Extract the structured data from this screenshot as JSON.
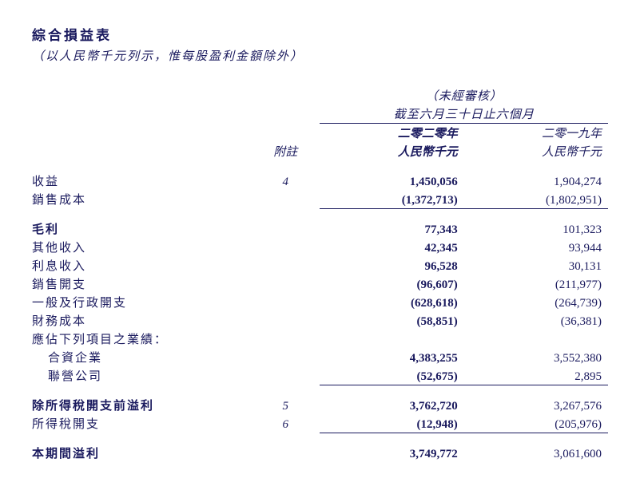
{
  "title": "綜合損益表",
  "subtitle": "（以人民幣千元列示，惟每股盈利金額除外）",
  "header": {
    "unaudited": "（未經審核）",
    "period": "截至六月三十日止六個月",
    "year_current": "二零二零年",
    "year_prior": "二零一九年",
    "note": "附註",
    "currency": "人民幣千元"
  },
  "rows": {
    "revenue": {
      "label": "收益",
      "note": "4",
      "cur": "1,450,056",
      "prior": "1,904,274"
    },
    "cogs": {
      "label": "銷售成本",
      "cur": "(1,372,713)",
      "prior": "(1,802,951)"
    },
    "gross": {
      "label": "毛利",
      "cur": "77,343",
      "prior": "101,323"
    },
    "other_income": {
      "label": "其他收入",
      "cur": "42,345",
      "prior": "93,944"
    },
    "interest_income": {
      "label": "利息收入",
      "cur": "96,528",
      "prior": "30,131"
    },
    "selling": {
      "label": "銷售開支",
      "cur": "(96,607)",
      "prior": "(211,977)"
    },
    "admin": {
      "label": "一般及行政開支",
      "cur": "(628,618)",
      "prior": "(264,739)"
    },
    "finance": {
      "label": "財務成本",
      "cur": "(58,851)",
      "prior": "(36,381)"
    },
    "share_heading": {
      "label": "應佔下列項目之業績："
    },
    "jv": {
      "label": "合資企業",
      "cur": "4,383,255",
      "prior": "3,552,380"
    },
    "assoc": {
      "label": "聯營公司",
      "cur": "(52,675)",
      "prior": "2,895"
    },
    "pbt": {
      "label": "除所得稅開支前溢利",
      "note": "5",
      "cur": "3,762,720",
      "prior": "3,267,576"
    },
    "tax": {
      "label": "所得稅開支",
      "note": "6",
      "cur": "(12,948)",
      "prior": "(205,976)"
    },
    "profit": {
      "label": "本期間溢利",
      "cur": "3,749,772",
      "prior": "3,061,600"
    }
  }
}
